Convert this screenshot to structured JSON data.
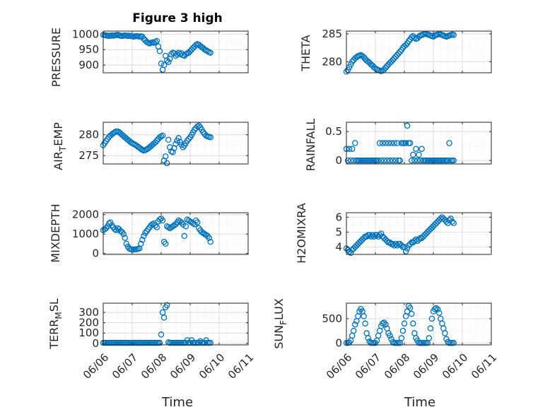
{
  "figure": {
    "title": "Figure 3 high"
  },
  "colors": {
    "marker": "#0072BD",
    "axes": "#262626",
    "grid": "#dedede"
  },
  "x_ticks": [
    "06/06",
    "06/07",
    "06/08",
    "06/09",
    "06/10",
    "06/11"
  ],
  "chart_data": [
    {
      "type": "scatter",
      "ylabel": "PRESSURE",
      "ylim": [
        875,
        1010
      ],
      "yticks": [
        900,
        950,
        1000
      ],
      "x": [
        6.0,
        6.05,
        6.1,
        6.15,
        6.2,
        6.25,
        6.3,
        6.35,
        6.4,
        6.45,
        6.5,
        6.55,
        6.6,
        6.65,
        6.7,
        6.75,
        6.8,
        6.85,
        6.9,
        6.95,
        7.0,
        7.05,
        7.1,
        7.15,
        7.2,
        7.25,
        7.3,
        7.35,
        7.4,
        7.45,
        7.5,
        7.55,
        7.6,
        7.65,
        7.7,
        7.75,
        7.8,
        7.85,
        7.9,
        7.95,
        8.0,
        8.05,
        8.1,
        8.15,
        8.2,
        8.25,
        8.3,
        8.35,
        8.4,
        8.45,
        8.5,
        8.55,
        8.6,
        8.65,
        8.7,
        8.75,
        8.8,
        8.85,
        8.9,
        8.95,
        9.0,
        9.05,
        9.1,
        9.15,
        9.2,
        9.25,
        9.3,
        9.35,
        9.4,
        9.45,
        9.5,
        9.55,
        9.6,
        9.65,
        9.7
      ],
      "y": [
        998,
        997,
        996,
        995,
        994,
        995,
        996,
        995,
        996,
        997,
        998,
        996,
        995,
        994,
        995,
        996,
        995,
        994,
        995,
        994,
        993,
        992,
        993,
        994,
        993,
        992,
        993,
        992,
        985,
        980,
        975,
        972,
        970,
        972,
        974,
        972,
        975,
        978,
        960,
        945,
        905,
        885,
        900,
        930,
        915,
        910,
        920,
        935,
        940,
        938,
        930,
        935,
        940,
        935,
        938,
        932,
        930,
        935,
        938,
        940,
        945,
        950,
        955,
        960,
        965,
        968,
        966,
        962,
        958,
        955,
        950,
        948,
        945,
        942,
        940
      ]
    },
    {
      "type": "scatter",
      "ylabel": "THETA",
      "ylim": [
        278,
        285.5
      ],
      "yticks": [
        280,
        285
      ],
      "x": [
        6.0,
        6.05,
        6.1,
        6.15,
        6.2,
        6.25,
        6.3,
        6.35,
        6.4,
        6.45,
        6.5,
        6.55,
        6.6,
        6.65,
        6.7,
        6.75,
        6.8,
        6.85,
        6.9,
        6.95,
        7.0,
        7.05,
        7.1,
        7.15,
        7.2,
        7.25,
        7.3,
        7.35,
        7.4,
        7.45,
        7.5,
        7.55,
        7.6,
        7.65,
        7.7,
        7.75,
        7.8,
        7.85,
        7.9,
        7.95,
        8.0,
        8.05,
        8.1,
        8.15,
        8.2,
        8.25,
        8.3,
        8.35,
        8.4,
        8.45,
        8.5,
        8.55,
        8.6,
        8.65,
        8.7,
        8.75,
        8.8,
        8.85,
        8.9,
        8.95,
        9.0,
        9.05,
        9.1,
        9.15,
        9.2,
        9.25,
        9.3,
        9.35,
        9.4,
        9.45,
        9.5,
        9.55,
        9.6,
        9.65,
        9.7
      ],
      "y": [
        278.2,
        278.5,
        279.0,
        279.5,
        280.0,
        280.3,
        280.6,
        280.8,
        281.0,
        281.1,
        281.2,
        281.0,
        280.8,
        280.5,
        280.2,
        280.0,
        279.8,
        279.5,
        279.3,
        279.0,
        278.8,
        278.6,
        278.5,
        278.4,
        278.3,
        278.4,
        278.6,
        278.9,
        279.2,
        279.5,
        279.8,
        280.0,
        280.3,
        280.6,
        280.9,
        281.2,
        281.5,
        281.8,
        282.1,
        282.5,
        282.8,
        283.0,
        283.3,
        283.7,
        284.0,
        284.4,
        284.6,
        284.3,
        284.1,
        284.2,
        284.5,
        284.7,
        284.8,
        284.9,
        285.0,
        285.0,
        284.9,
        284.8,
        284.7,
        284.6,
        284.5,
        284.7,
        284.8,
        284.9,
        285.0,
        284.9,
        284.8,
        284.7,
        284.6,
        284.5,
        284.6,
        284.7,
        284.8,
        284.9,
        284.8
      ]
    },
    {
      "type": "scatter",
      "ylabel": "AIR_TEMP",
      "ylim": [
        273,
        283
      ],
      "yticks": [
        275,
        280
      ],
      "x": [
        6.0,
        6.05,
        6.1,
        6.15,
        6.2,
        6.25,
        6.3,
        6.35,
        6.4,
        6.45,
        6.5,
        6.55,
        6.6,
        6.65,
        6.7,
        6.75,
        6.8,
        6.85,
        6.9,
        6.95,
        7.0,
        7.05,
        7.1,
        7.15,
        7.2,
        7.25,
        7.3,
        7.35,
        7.4,
        7.45,
        7.5,
        7.55,
        7.6,
        7.65,
        7.7,
        7.75,
        7.8,
        7.85,
        7.9,
        7.95,
        8.0,
        8.05,
        8.1,
        8.15,
        8.2,
        8.25,
        8.3,
        8.35,
        8.4,
        8.45,
        8.5,
        8.55,
        8.6,
        8.65,
        8.7,
        8.75,
        8.8,
        8.85,
        8.9,
        8.95,
        9.0,
        9.05,
        9.1,
        9.15,
        9.2,
        9.25,
        9.3,
        9.35,
        9.4,
        9.45,
        9.5,
        9.55,
        9.6,
        9.65,
        9.7
      ],
      "y": [
        277.5,
        278.0,
        278.5,
        279.0,
        279.5,
        279.8,
        280.1,
        280.4,
        280.6,
        280.8,
        280.8,
        280.6,
        280.3,
        280.0,
        279.7,
        279.4,
        279.1,
        278.8,
        278.5,
        278.2,
        278.0,
        277.8,
        277.6,
        277.4,
        277.1,
        276.9,
        276.6,
        276.4,
        276.2,
        276.3,
        276.5,
        276.7,
        277.0,
        277.3,
        277.6,
        277.9,
        278.2,
        278.6,
        279.0,
        279.4,
        279.6,
        279.8,
        273.8,
        274.8,
        273.2,
        278.8,
        277.0,
        276.0,
        275.8,
        276.8,
        277.8,
        278.6,
        279.2,
        278.3,
        277.6,
        277.0,
        277.4,
        278.0,
        278.6,
        279.0,
        279.4,
        280.0,
        280.6,
        281.2,
        281.6,
        282.0,
        282.2,
        281.8,
        281.2,
        280.6,
        280.2,
        279.8,
        279.6,
        279.5,
        279.4
      ]
    },
    {
      "type": "scatter",
      "ylabel": "RAINFALL",
      "ylim": [
        -0.06,
        0.66
      ],
      "yticks": [
        0,
        0.5
      ],
      "x": [
        6.0,
        6.05,
        6.1,
        6.15,
        6.2,
        6.25,
        6.3,
        6.35,
        6.4,
        6.45,
        6.5,
        6.55,
        6.6,
        6.65,
        6.7,
        6.75,
        6.8,
        6.85,
        6.9,
        6.95,
        7.0,
        7.05,
        7.1,
        7.15,
        7.2,
        7.25,
        7.3,
        7.35,
        7.4,
        7.45,
        7.5,
        7.55,
        7.6,
        7.65,
        7.7,
        7.75,
        7.8,
        7.85,
        7.9,
        7.95,
        8.0,
        8.05,
        8.1,
        8.15,
        8.2,
        8.25,
        8.3,
        8.35,
        8.4,
        8.45,
        8.5,
        8.55,
        8.6,
        8.65,
        8.7,
        8.75,
        8.8,
        8.85,
        8.9,
        8.95,
        9.0,
        9.05,
        9.1,
        9.15,
        9.2,
        9.25,
        9.3,
        9.35,
        9.4,
        9.45,
        9.5,
        9.55,
        9.6,
        9.65,
        9.7
      ],
      "y": [
        0.2,
        0.0,
        0.2,
        0.0,
        0.2,
        0.0,
        0.3,
        0.0,
        0.0,
        0.0,
        0.0,
        0.0,
        0.0,
        0.0,
        0.0,
        0.0,
        0.0,
        0.0,
        0.0,
        0.0,
        0.0,
        0.0,
        0.0,
        0.3,
        0.0,
        0.3,
        0.0,
        0.3,
        0.0,
        0.3,
        0.0,
        0.3,
        0.0,
        0.3,
        0.0,
        0.3,
        0.0,
        0.0,
        0.3,
        0.3,
        0.3,
        0.3,
        0.6,
        0.3,
        0.3,
        0.0,
        0.1,
        0.0,
        0.2,
        0.0,
        0.1,
        0.0,
        0.2,
        0.0,
        0.0,
        0.0,
        0.0,
        0.0,
        0.0,
        0.0,
        0.0,
        0.0,
        0.0,
        0.0,
        0.0,
        0.0,
        0.0,
        0.0,
        0.0,
        0.0,
        0.0,
        0.3,
        0.0,
        0.0,
        0.0
      ]
    },
    {
      "type": "scatter",
      "ylabel": "MIXDEPTH",
      "ylim": [
        -50,
        2100
      ],
      "yticks": [
        0,
        1000,
        2000
      ],
      "x": [
        6.0,
        6.05,
        6.1,
        6.15,
        6.2,
        6.25,
        6.3,
        6.35,
        6.4,
        6.45,
        6.5,
        6.55,
        6.6,
        6.65,
        6.7,
        6.75,
        6.8,
        6.85,
        6.9,
        6.95,
        7.0,
        7.05,
        7.1,
        7.15,
        7.2,
        7.25,
        7.3,
        7.35,
        7.4,
        7.45,
        7.5,
        7.55,
        7.6,
        7.65,
        7.7,
        7.75,
        7.8,
        7.85,
        7.9,
        7.95,
        8.0,
        8.05,
        8.1,
        8.15,
        8.2,
        8.25,
        8.3,
        8.35,
        8.4,
        8.45,
        8.5,
        8.55,
        8.6,
        8.65,
        8.7,
        8.75,
        8.8,
        8.85,
        8.9,
        8.95,
        9.0,
        9.05,
        9.1,
        9.15,
        9.2,
        9.25,
        9.3,
        9.35,
        9.4,
        9.45,
        9.5,
        9.55,
        9.6,
        9.65,
        9.7
      ],
      "y": [
        1200,
        1250,
        1300,
        1400,
        1550,
        1600,
        1450,
        1350,
        1250,
        1200,
        1300,
        1250,
        1150,
        1100,
        1000,
        800,
        500,
        350,
        250,
        220,
        200,
        200,
        210,
        220,
        240,
        260,
        500,
        700,
        900,
        1050,
        1150,
        1250,
        1350,
        1450,
        1500,
        1550,
        1450,
        1350,
        1650,
        1750,
        1800,
        1700,
        600,
        500,
        1400,
        1350,
        1300,
        1350,
        1400,
        1450,
        1500,
        1600,
        1700,
        1650,
        1600,
        1500,
        900,
        1400,
        1750,
        1700,
        1650,
        1600,
        1550,
        1500,
        1700,
        1600,
        1300,
        1200,
        1100,
        1050,
        1000,
        950,
        900,
        800,
        600
      ]
    },
    {
      "type": "scatter",
      "ylabel": "H2OMIXRA",
      "ylim": [
        3.5,
        6.3
      ],
      "yticks": [
        4,
        5,
        6
      ],
      "x": [
        6.0,
        6.05,
        6.1,
        6.15,
        6.2,
        6.25,
        6.3,
        6.35,
        6.4,
        6.45,
        6.5,
        6.55,
        6.6,
        6.65,
        6.7,
        6.75,
        6.8,
        6.85,
        6.9,
        6.95,
        7.0,
        7.05,
        7.1,
        7.15,
        7.2,
        7.25,
        7.3,
        7.35,
        7.4,
        7.45,
        7.5,
        7.55,
        7.6,
        7.65,
        7.7,
        7.75,
        7.8,
        7.85,
        7.9,
        7.95,
        8.0,
        8.05,
        8.1,
        8.15,
        8.2,
        8.25,
        8.3,
        8.35,
        8.4,
        8.45,
        8.5,
        8.55,
        8.6,
        8.65,
        8.7,
        8.75,
        8.8,
        8.85,
        8.9,
        8.95,
        9.0,
        9.05,
        9.1,
        9.15,
        9.2,
        9.25,
        9.3,
        9.35,
        9.4,
        9.45,
        9.5,
        9.55,
        9.6,
        9.65,
        9.7
      ],
      "y": [
        3.9,
        3.8,
        3.7,
        3.6,
        3.8,
        3.9,
        4.0,
        4.1,
        4.2,
        4.3,
        4.4,
        4.5,
        4.6,
        4.7,
        4.7,
        4.8,
        4.8,
        4.7,
        4.8,
        4.7,
        4.8,
        4.8,
        4.7,
        4.8,
        4.9,
        4.7,
        4.6,
        4.5,
        4.4,
        4.3,
        4.3,
        4.2,
        4.2,
        4.1,
        4.2,
        4.1,
        4.2,
        4.2,
        4.1,
        4.0,
        4.0,
        3.7,
        3.9,
        4.1,
        4.2,
        4.3,
        4.3,
        4.4,
        4.5,
        4.4,
        4.5,
        4.6,
        4.6,
        4.7,
        4.8,
        4.9,
        5.0,
        5.1,
        5.2,
        5.3,
        5.4,
        5.5,
        5.6,
        5.7,
        5.8,
        5.9,
        6.0,
        5.9,
        5.8,
        5.7,
        5.6,
        5.8,
        5.9,
        5.7,
        5.6
      ]
    },
    {
      "type": "scatter",
      "ylabel": "TERR_MSL",
      "ylim": [
        -15,
        390
      ],
      "yticks": [
        0,
        100,
        200,
        300
      ],
      "x": [
        6.0,
        6.05,
        6.1,
        6.15,
        6.2,
        6.25,
        6.3,
        6.35,
        6.4,
        6.45,
        6.5,
        6.55,
        6.6,
        6.65,
        6.7,
        6.75,
        6.8,
        6.85,
        6.9,
        6.95,
        7.0,
        7.05,
        7.1,
        7.15,
        7.2,
        7.25,
        7.3,
        7.35,
        7.4,
        7.45,
        7.5,
        7.55,
        7.6,
        7.65,
        7.7,
        7.75,
        7.8,
        7.85,
        7.9,
        7.95,
        8.0,
        8.05,
        8.1,
        8.15,
        8.2,
        8.25,
        8.3,
        8.35,
        8.4,
        8.45,
        8.5,
        8.55,
        8.6,
        8.65,
        8.7,
        8.75,
        8.8,
        8.85,
        8.9,
        8.95,
        9.0,
        9.05,
        9.1,
        9.15,
        9.2,
        9.25,
        9.3,
        9.35,
        9.4,
        9.45,
        9.5,
        9.55,
        9.6,
        9.65,
        9.7
      ],
      "y": [
        5,
        5,
        5,
        5,
        5,
        5,
        5,
        5,
        5,
        5,
        5,
        5,
        5,
        5,
        5,
        5,
        5,
        5,
        5,
        5,
        5,
        5,
        5,
        5,
        5,
        5,
        5,
        5,
        5,
        5,
        5,
        5,
        5,
        5,
        5,
        5,
        5,
        5,
        5,
        5,
        85,
        300,
        250,
        350,
        370,
        10,
        5,
        5,
        5,
        5,
        5,
        5,
        5,
        5,
        5,
        5,
        5,
        5,
        30,
        5,
        5,
        30,
        5,
        5,
        5,
        5,
        5,
        20,
        5,
        5,
        5,
        30,
        5,
        5,
        5
      ]
    },
    {
      "type": "scatter",
      "ylabel": "SUN_FLUX",
      "ylim": [
        -40,
        820
      ],
      "yticks": [
        0,
        500
      ],
      "x": [
        6.0,
        6.05,
        6.1,
        6.15,
        6.2,
        6.25,
        6.3,
        6.35,
        6.4,
        6.45,
        6.5,
        6.55,
        6.6,
        6.65,
        6.7,
        6.75,
        6.8,
        6.85,
        6.9,
        6.95,
        7.0,
        7.05,
        7.1,
        7.15,
        7.2,
        7.25,
        7.3,
        7.35,
        7.4,
        7.45,
        7.5,
        7.55,
        7.6,
        7.65,
        7.7,
        7.75,
        7.8,
        7.85,
        7.9,
        7.95,
        8.0,
        8.05,
        8.1,
        8.15,
        8.2,
        8.25,
        8.3,
        8.35,
        8.4,
        8.45,
        8.5,
        8.55,
        8.6,
        8.65,
        8.7,
        8.75,
        8.8,
        8.85,
        8.9,
        8.95,
        9.0,
        9.05,
        9.1,
        9.15,
        9.2,
        9.25,
        9.3,
        9.35,
        9.4,
        9.45,
        9.5,
        9.55,
        9.6,
        9.65,
        9.7
      ],
      "y": [
        0,
        0,
        10,
        50,
        150,
        250,
        380,
        450,
        550,
        650,
        700,
        650,
        550,
        400,
        200,
        100,
        30,
        0,
        0,
        0,
        0,
        50,
        150,
        250,
        350,
        400,
        420,
        380,
        300,
        200,
        150,
        80,
        20,
        0,
        0,
        0,
        0,
        0,
        100,
        250,
        400,
        550,
        650,
        760,
        720,
        600,
        400,
        200,
        100,
        50,
        0,
        0,
        0,
        0,
        0,
        0,
        0,
        100,
        300,
        500,
        650,
        700,
        720,
        690,
        620,
        500,
        400,
        300,
        200,
        80,
        20,
        0,
        0,
        0,
        0
      ]
    }
  ]
}
